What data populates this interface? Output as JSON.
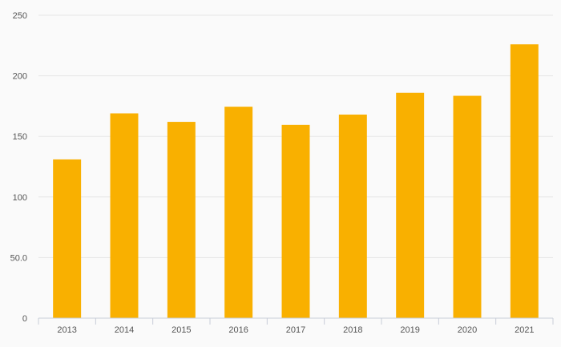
{
  "chart_data": {
    "type": "bar",
    "title": "",
    "xlabel": "",
    "ylabel": "",
    "categories": [
      "2013",
      "2014",
      "2015",
      "2016",
      "2017",
      "2018",
      "2019",
      "2020",
      "2021"
    ],
    "values": [
      131,
      169,
      162,
      174.5,
      159.5,
      168,
      186,
      183.5,
      226
    ],
    "ylim": [
      0,
      250
    ],
    "yticks": [
      0,
      50,
      100,
      150,
      200,
      250
    ],
    "ytick_labels": [
      "0",
      "50.0",
      "100",
      "150",
      "200",
      "250"
    ],
    "grid": true,
    "legend": "none",
    "colors": {
      "bar": "#f9b000",
      "grid": "#e6e6e6",
      "axis": "#c8cdd8",
      "background": "#fafafa"
    }
  }
}
